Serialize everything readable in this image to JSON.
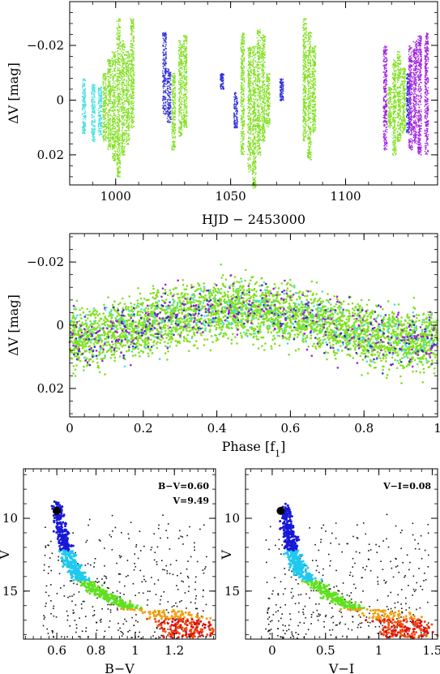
{
  "chart_data": [
    {
      "id": "lightcurve",
      "type": "scatter",
      "xlabel": "HJD − 2453000",
      "ylabel": "ΔV [mag]",
      "xlim": [
        980,
        1140
      ],
      "ylim": [
        0.031,
        -0.036
      ],
      "y_inverted": true,
      "xticks": [
        1000,
        1050,
        1100
      ],
      "yticks": [
        -0.02,
        0,
        0.02
      ],
      "xtick_labels": [
        "1000",
        "1050",
        "1100"
      ],
      "ytick_labels": [
        "−0.02",
        "0",
        "0.02"
      ],
      "series": [
        {
          "color": "#48e0e0",
          "nights": [
            {
              "x": 986,
              "y0": -0.008,
              "y1": 0.012
            },
            {
              "x": 990,
              "y0": -0.006,
              "y1": 0.015
            },
            {
              "x": 993,
              "y0": -0.005,
              "y1": 0.013
            }
          ]
        },
        {
          "color": "#80e020",
          "nights": [
            {
              "x": 995,
              "y0": -0.01,
              "y1": 0.015
            },
            {
              "x": 997,
              "y0": -0.015,
              "y1": 0.018
            },
            {
              "x": 999,
              "y0": -0.018,
              "y1": 0.022
            },
            {
              "x": 1001,
              "y0": -0.03,
              "y1": 0.028
            },
            {
              "x": 1003,
              "y0": -0.022,
              "y1": 0.02
            },
            {
              "x": 1005,
              "y0": -0.018,
              "y1": 0.016
            },
            {
              "x": 1007,
              "y0": -0.03,
              "y1": 0.01
            },
            {
              "x": 1025,
              "y0": -0.01,
              "y1": 0.018
            },
            {
              "x": 1028,
              "y0": -0.022,
              "y1": 0.013
            },
            {
              "x": 1030,
              "y0": -0.024,
              "y1": 0.01
            },
            {
              "x": 1055,
              "y0": -0.025,
              "y1": 0.02
            },
            {
              "x": 1058,
              "y0": -0.02,
              "y1": 0.026
            },
            {
              "x": 1060,
              "y0": -0.02,
              "y1": 0.032
            },
            {
              "x": 1062,
              "y0": -0.026,
              "y1": 0.02
            },
            {
              "x": 1064,
              "y0": -0.024,
              "y1": 0.015
            },
            {
              "x": 1066,
              "y0": -0.01,
              "y1": 0.01
            },
            {
              "x": 1082,
              "y0": -0.03,
              "y1": 0.015
            },
            {
              "x": 1084,
              "y0": -0.025,
              "y1": 0.022
            },
            {
              "x": 1086,
              "y0": -0.02,
              "y1": 0.012
            },
            {
              "x": 1119,
              "y0": -0.005,
              "y1": 0.01
            },
            {
              "x": 1121,
              "y0": -0.015,
              "y1": 0.02
            },
            {
              "x": 1123,
              "y0": -0.018,
              "y1": 0.015
            },
            {
              "x": 1125,
              "y0": -0.012,
              "y1": 0.012
            }
          ]
        },
        {
          "color": "#3030d8",
          "nights": [
            {
              "x": 1021,
              "y0": -0.025,
              "y1": 0.005
            },
            {
              "x": 1023,
              "y0": -0.012,
              "y1": 0.008
            },
            {
              "x": 1046,
              "y0": -0.01,
              "y1": -0.004
            },
            {
              "x": 1052,
              "y0": -0.003,
              "y1": 0.01
            },
            {
              "x": 1072,
              "y0": -0.008,
              "y1": 0.0
            },
            {
              "x": 1127,
              "y0": -0.01,
              "y1": 0.012
            }
          ]
        },
        {
          "color": "#a020e0",
          "nights": [
            {
              "x": 1117,
              "y0": -0.02,
              "y1": 0.018
            },
            {
              "x": 1128,
              "y0": -0.02,
              "y1": 0.018
            },
            {
              "x": 1130,
              "y0": -0.022,
              "y1": 0.016
            },
            {
              "x": 1132,
              "y0": -0.024,
              "y1": 0.02
            },
            {
              "x": 1135,
              "y0": -0.025,
              "y1": 0.02
            }
          ]
        }
      ]
    },
    {
      "id": "phase",
      "type": "scatter",
      "xlabel": "Phase [f",
      "xlabel_sub": "1",
      "xlabel_end": "]",
      "ylabel": "ΔV [mag]",
      "xlim": [
        0,
        1
      ],
      "ylim": [
        0.029,
        -0.029
      ],
      "y_inverted": true,
      "xticks": [
        0,
        0.2,
        0.4,
        0.6,
        0.8,
        1
      ],
      "yticks": [
        -0.02,
        0,
        0.02
      ],
      "xtick_labels": [
        "0",
        "0.2",
        "0.4",
        "0.6",
        "0.8",
        "1"
      ],
      "ytick_labels": [
        "−0.02",
        "0",
        "0.02"
      ],
      "model": {
        "amplitude": 0.005,
        "peak_phase": 0.45,
        "scatter": 0.009
      },
      "series": [
        {
          "color": "#80e020",
          "count": 3500
        },
        {
          "color": "#48e0e0",
          "count": 300
        },
        {
          "color": "#a020e0",
          "count": 320
        },
        {
          "color": "#3030d8",
          "count": 200
        }
      ]
    },
    {
      "id": "cmd_bv",
      "type": "scatter",
      "xlabel": "B−V",
      "ylabel": "V",
      "xlim": [
        0.43,
        1.41
      ],
      "ylim": [
        18.3,
        6.6
      ],
      "y_inverted": true,
      "xticks": [
        0.6,
        0.8,
        1,
        1.2
      ],
      "yticks": [
        10,
        15
      ],
      "xtick_labels": [
        "0.6",
        "0.8",
        "1",
        "1.2"
      ],
      "ytick_labels": [
        "10",
        "15"
      ],
      "annotations": [
        "B−V=0.60",
        "V=9.49"
      ],
      "star": {
        "x": 0.6,
        "y": 9.49
      }
    },
    {
      "id": "cmd_vi",
      "type": "scatter",
      "xlabel": "V−I",
      "ylabel": "V",
      "xlim": [
        -0.25,
        1.55
      ],
      "ylim": [
        18.3,
        6.6
      ],
      "y_inverted": true,
      "xticks": [
        0,
        0.5,
        1,
        1.5
      ],
      "yticks": [
        10,
        15
      ],
      "xtick_labels": [
        "0",
        "0.5",
        "1",
        "1.5"
      ],
      "ytick_labels": [
        "10",
        "15"
      ],
      "annotations": [
        "V−I=0.08"
      ],
      "star": {
        "x": 0.08,
        "y": 9.49
      }
    }
  ],
  "cmd_sequence": {
    "bv": [
      [
        0.6,
        8.8
      ],
      [
        0.62,
        10.8
      ],
      [
        0.66,
        12.6
      ],
      [
        0.7,
        13.8
      ],
      [
        0.8,
        15.0
      ],
      [
        0.92,
        15.8
      ],
      [
        1.04,
        16.5
      ],
      [
        1.15,
        17.3
      ]
    ],
    "vi": [
      [
        0.12,
        8.8
      ],
      [
        0.15,
        10.8
      ],
      [
        0.2,
        12.6
      ],
      [
        0.28,
        13.8
      ],
      [
        0.48,
        15.0
      ],
      [
        0.68,
        15.8
      ],
      [
        0.85,
        16.6
      ],
      [
        1.05,
        17.4
      ]
    ],
    "colors": [
      "#1818d8",
      "#20c8f0",
      "#60e020",
      "#f0a010",
      "#f05010",
      "#e01010"
    ]
  }
}
